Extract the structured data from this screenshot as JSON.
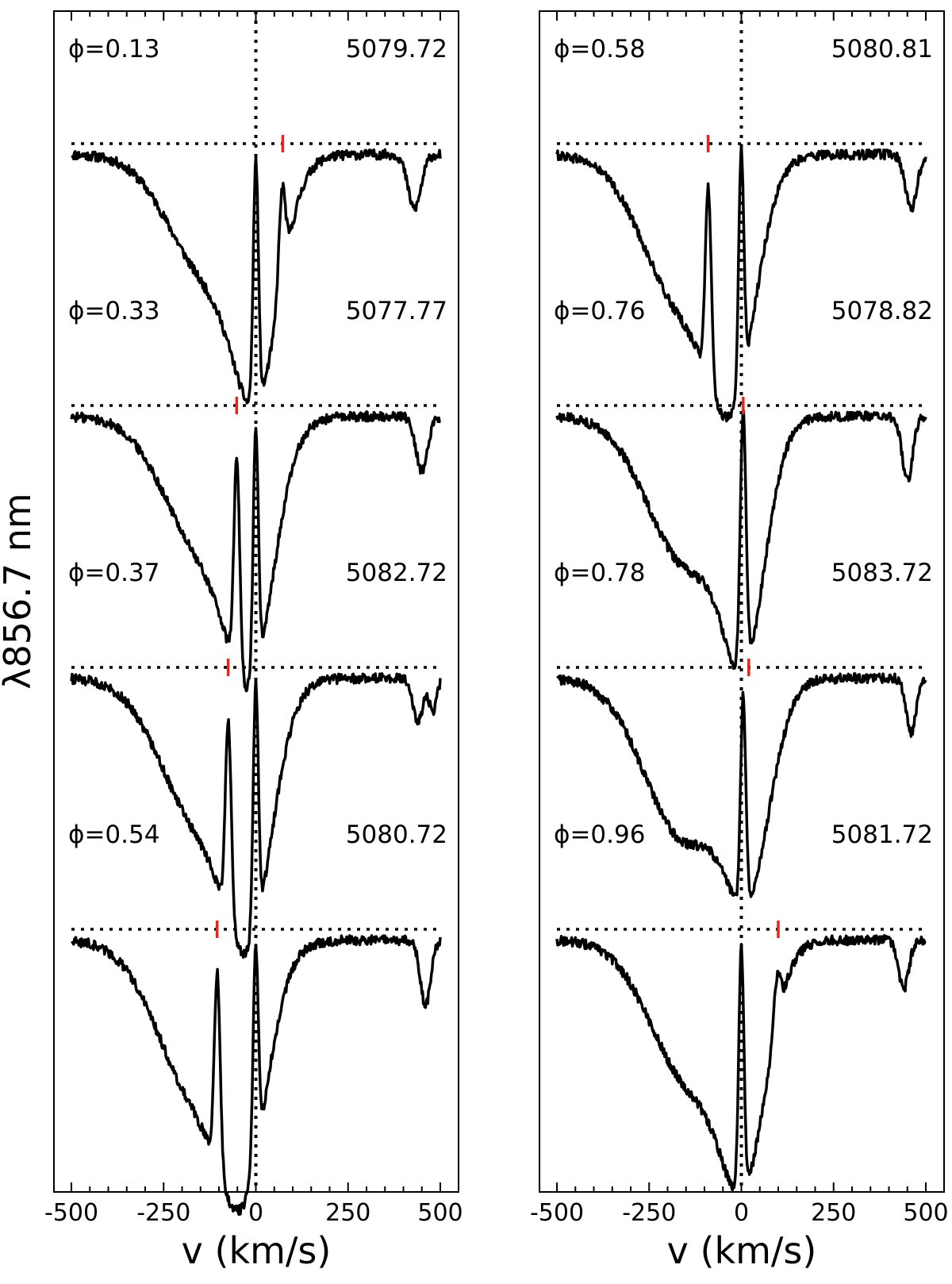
{
  "figure": {
    "ylabel": "λ856.7 nm"
  },
  "chart_data": [
    {
      "type": "line",
      "panel": "left",
      "xlabel": "v (km/s)",
      "xlim": [
        -500,
        500
      ],
      "xticks": [
        -500,
        -250,
        0,
        250,
        500
      ],
      "xtick_labels": [
        "-500",
        "-250",
        "0",
        "250",
        "500"
      ],
      "grid": false,
      "spectra": [
        {
          "phase": "ϕ=0.13",
          "date": "5079.72",
          "comps": [
            {
              "v": -120,
              "d": 0.23,
              "w": 110
            },
            {
              "v": 5,
              "d": 0.34,
              "w": 60
            },
            {
              "v": 430,
              "d": 0.1,
              "w": 18
            }
          ],
          "peaks": [
            {
              "v": 0,
              "h": 0.97,
              "w": 7
            },
            {
              "v": 73,
              "h": 0.92,
              "w": 9
            }
          ],
          "marker_v": 73
        },
        {
          "phase": "ϕ=0.33",
          "date": "5077.77",
          "comps": [
            {
              "v": -130,
              "d": 0.26,
              "w": 110
            },
            {
              "v": -10,
              "d": 0.35,
              "w": 60
            },
            {
              "v": 450,
              "d": 0.1,
              "w": 16
            }
          ],
          "peaks": [
            {
              "v": -52,
              "h": 0.9,
              "w": 8
            },
            {
              "v": 0,
              "h": 0.96,
              "w": 7
            }
          ],
          "marker_v": -52
        },
        {
          "phase": "ϕ=0.37",
          "date": "5082.72",
          "comps": [
            {
              "v": -140,
              "d": 0.28,
              "w": 110
            },
            {
              "v": -15,
              "d": 0.35,
              "w": 60
            },
            {
              "v": 440,
              "d": 0.08,
              "w": 14
            },
            {
              "v": 480,
              "d": 0.06,
              "w": 10
            }
          ],
          "peaks": [
            {
              "v": -75,
              "h": 0.9,
              "w": 8
            },
            {
              "v": 0,
              "h": 0.97,
              "w": 7
            }
          ],
          "marker_v": -75
        },
        {
          "phase": "ϕ=0.54",
          "date": "5080.72",
          "comps": [
            {
              "v": -150,
              "d": 0.3,
              "w": 110
            },
            {
              "v": -30,
              "d": 0.32,
              "w": 60
            },
            {
              "v": 460,
              "d": 0.12,
              "w": 14
            }
          ],
          "peaks": [
            {
              "v": -105,
              "h": 0.92,
              "w": 8
            },
            {
              "v": 0,
              "h": 0.97,
              "w": 7
            }
          ],
          "marker_v": -105
        }
      ]
    },
    {
      "type": "line",
      "panel": "right",
      "xlabel": "v (km/s)",
      "xlim": [
        -500,
        500
      ],
      "xticks": [
        -500,
        -250,
        0,
        250,
        500
      ],
      "xtick_labels": [
        "-500",
        "-250",
        "0",
        "250",
        "500"
      ],
      "grid": false,
      "spectra": [
        {
          "phase": "ϕ=0.58",
          "date": "5080.81",
          "comps": [
            {
              "v": -150,
              "d": 0.29,
              "w": 110
            },
            {
              "v": -20,
              "d": 0.33,
              "w": 60
            },
            {
              "v": 460,
              "d": 0.1,
              "w": 16
            }
          ],
          "peaks": [
            {
              "v": -90,
              "h": 0.92,
              "w": 8
            },
            {
              "v": 0,
              "h": 0.99,
              "w": 7
            }
          ],
          "marker_v": -90
        },
        {
          "phase": "ϕ=0.76",
          "date": "5078.82",
          "comps": [
            {
              "v": -140,
              "d": 0.28,
              "w": 110
            },
            {
              "v": 10,
              "d": 0.36,
              "w": 55
            },
            {
              "v": 450,
              "d": 0.12,
              "w": 14
            }
          ],
          "peaks": [
            {
              "v": 5,
              "h": 0.99,
              "w": 8
            }
          ],
          "marker_v": 5
        },
        {
          "phase": "ϕ=0.78",
          "date": "5083.72",
          "comps": [
            {
              "v": -150,
              "d": 0.3,
              "w": 110
            },
            {
              "v": 20,
              "d": 0.32,
              "w": 60
            },
            {
              "v": 460,
              "d": 0.1,
              "w": 14
            }
          ],
          "peaks": [
            {
              "v": 5,
              "h": 0.95,
              "w": 7
            }
          ],
          "marker_v": 20
        },
        {
          "phase": "ϕ=0.96",
          "date": "5081.72",
          "comps": [
            {
              "v": -130,
              "d": 0.27,
              "w": 110
            },
            {
              "v": 10,
              "d": 0.34,
              "w": 60
            },
            {
              "v": 440,
              "d": 0.09,
              "w": 14
            }
          ],
          "peaks": [
            {
              "v": 0,
              "h": 0.97,
              "w": 7
            },
            {
              "v": 100,
              "h": 0.92,
              "w": 9
            }
          ],
          "marker_v": 100
        }
      ]
    }
  ]
}
